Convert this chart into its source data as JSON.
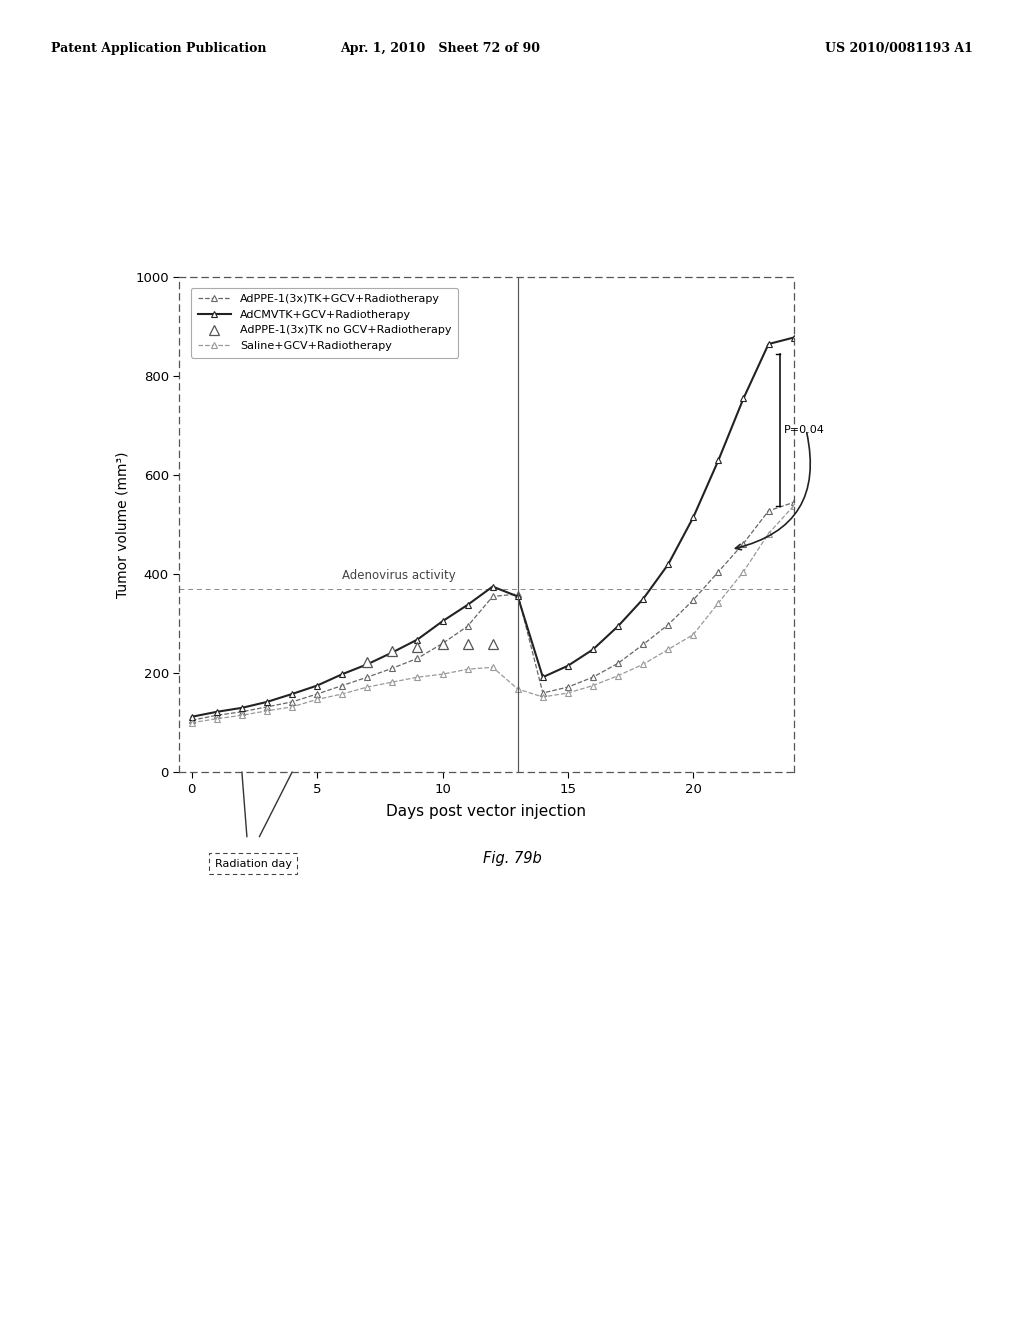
{
  "xlabel": "Days post vector injection",
  "ylabel": "Tumor volume (mm³)",
  "xlim": [
    -0.5,
    24
  ],
  "ylim": [
    0,
    1000
  ],
  "yticks": [
    0,
    200,
    400,
    600,
    800,
    1000
  ],
  "xticks": [
    0,
    5,
    10,
    15,
    20
  ],
  "adeno_line_y": 370,
  "vertical_line_x": 13,
  "adeno_label": "Adenovirus activity",
  "p_value": "P=0.04",
  "radiation_label": "Radiation day",
  "fig_label": "Fig. 79b",
  "header_left": "Patent Application Publication",
  "header_center": "Apr. 1, 2010   Sheet 72 of 90",
  "header_right": "US 2010/0081193 A1",
  "AdPPE_label": "AdPPE-1(3x)TK+GCV+Radiotherapy",
  "AdCMV_label": "AdCMVTK+GCV+Radiotherapy",
  "AdPPE_noGCV_label": "AdPPE-1(3x)TK no GCV+Radiotherapy",
  "Saline_label": "Saline+GCV+Radiotherapy",
  "AdPPE_x": [
    0,
    1,
    2,
    3,
    4,
    5,
    6,
    7,
    8,
    9,
    10,
    11,
    12,
    13,
    14,
    15,
    16,
    17,
    18,
    19,
    20,
    21,
    22,
    23,
    24
  ],
  "AdPPE_y": [
    105,
    115,
    122,
    132,
    142,
    158,
    175,
    192,
    210,
    230,
    260,
    295,
    355,
    360,
    160,
    172,
    192,
    220,
    258,
    298,
    348,
    405,
    462,
    528,
    545
  ],
  "AdCMV_x": [
    0,
    1,
    2,
    3,
    4,
    5,
    6,
    7,
    8,
    9,
    10,
    11,
    12,
    13,
    14,
    15,
    16,
    17,
    18,
    19,
    20,
    21,
    22,
    23,
    24
  ],
  "AdCMV_y": [
    112,
    122,
    130,
    142,
    158,
    175,
    198,
    218,
    242,
    268,
    305,
    338,
    375,
    355,
    192,
    215,
    248,
    295,
    350,
    420,
    515,
    630,
    755,
    865,
    878
  ],
  "AdPPE_noGCV_x": [
    7,
    8,
    9,
    10,
    11,
    12
  ],
  "AdPPE_noGCV_y": [
    222,
    245,
    252,
    258,
    260,
    258
  ],
  "Saline_x": [
    0,
    1,
    2,
    3,
    4,
    5,
    6,
    7,
    8,
    9,
    10,
    11,
    12,
    13,
    14,
    15,
    16,
    17,
    18,
    19,
    20,
    21,
    22,
    23,
    24
  ],
  "Saline_y": [
    100,
    108,
    115,
    124,
    132,
    147,
    158,
    172,
    182,
    192,
    198,
    208,
    212,
    168,
    152,
    160,
    175,
    195,
    218,
    248,
    278,
    342,
    405,
    482,
    538
  ]
}
